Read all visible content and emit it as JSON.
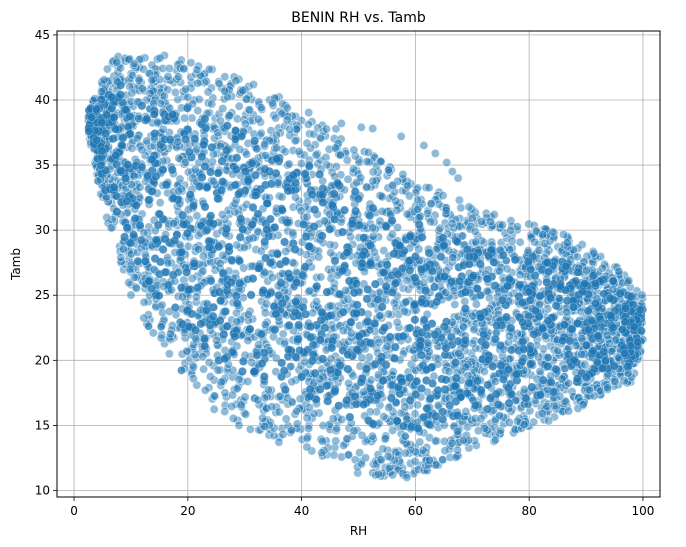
{
  "chart_data": {
    "type": "scatter",
    "title": "BENIN RH vs. Tamb",
    "xlabel": "RH",
    "ylabel": "Tamb",
    "xlim": [
      -3,
      103
    ],
    "ylim": [
      9.5,
      45.3
    ],
    "xticks": [
      0,
      20,
      40,
      60,
      80,
      100
    ],
    "yticks": [
      10,
      15,
      20,
      25,
      30,
      35,
      40,
      45
    ],
    "grid": true,
    "marker_color": "#1f77b4",
    "marker_edge_color": "#ffffff",
    "marker_alpha": 0.5,
    "density_envelope": {
      "upper": [
        [
          2.5,
          39.5
        ],
        [
          6,
          42.5
        ],
        [
          8,
          43.7
        ],
        [
          15,
          43.6
        ],
        [
          25,
          42.5
        ],
        [
          35,
          40.5
        ],
        [
          45,
          38.2
        ],
        [
          55,
          35.0
        ],
        [
          60,
          34.0
        ],
        [
          65,
          32.8
        ],
        [
          75,
          31.0
        ],
        [
          85,
          30.0
        ],
        [
          95,
          27.5
        ],
        [
          100,
          25.0
        ]
      ],
      "lower": [
        [
          100,
          21.0
        ],
        [
          98,
          18.3
        ],
        [
          95,
          18.0
        ],
        [
          90,
          16.5
        ],
        [
          85,
          15.5
        ],
        [
          80,
          14.5
        ],
        [
          75,
          14.0
        ],
        [
          70,
          13.0
        ],
        [
          62,
          11.5
        ],
        [
          58,
          11.0
        ],
        [
          52,
          11.0
        ],
        [
          45,
          12.0
        ],
        [
          40,
          13.5
        ],
        [
          35,
          14.0
        ],
        [
          30,
          15.0
        ],
        [
          25,
          16.0
        ],
        [
          20,
          18.5
        ],
        [
          15,
          21.0
        ],
        [
          10,
          25.0
        ],
        [
          6,
          30.5
        ],
        [
          4,
          34.0
        ],
        [
          2.5,
          37.5
        ]
      ]
    },
    "outliers": [
      {
        "x": 50.5,
        "y": 37.9
      },
      {
        "x": 52.5,
        "y": 37.8
      },
      {
        "x": 57.5,
        "y": 37.2
      },
      {
        "x": 61.5,
        "y": 36.5
      },
      {
        "x": 63.5,
        "y": 35.9
      },
      {
        "x": 65.5,
        "y": 35.2
      },
      {
        "x": 66.5,
        "y": 34.5
      },
      {
        "x": 67.5,
        "y": 34.0
      },
      {
        "x": 47,
        "y": 38.2
      },
      {
        "x": 58.5,
        "y": 11.0
      },
      {
        "x": 56,
        "y": 11.2
      },
      {
        "x": 29,
        "y": 15.0
      },
      {
        "x": 31,
        "y": 14.7
      },
      {
        "x": 36,
        "y": 13.7
      }
    ]
  }
}
